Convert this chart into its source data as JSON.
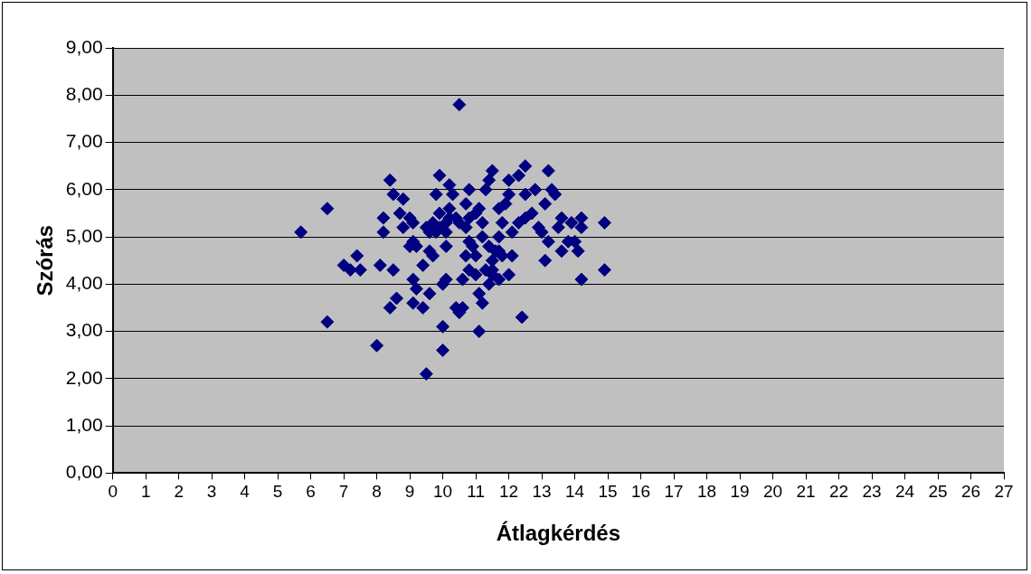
{
  "chart_data": {
    "type": "scatter",
    "xlabel": "Átlagkérdés",
    "ylabel": "Szórás",
    "color": "#000080",
    "marker": "diamond",
    "grid": "y",
    "xlim": [
      0,
      27
    ],
    "xticks": [
      0,
      1,
      2,
      3,
      4,
      5,
      6,
      7,
      8,
      9,
      10,
      11,
      12,
      13,
      14,
      15,
      16,
      17,
      18,
      19,
      20,
      21,
      22,
      23,
      24,
      25,
      26,
      27
    ],
    "ylim": [
      0,
      9
    ],
    "yticks": [
      {
        "value": 0,
        "label": "0,00"
      },
      {
        "value": 1,
        "label": "1,00"
      },
      {
        "value": 2,
        "label": "2,00"
      },
      {
        "value": 3,
        "label": "3,00"
      },
      {
        "value": 4,
        "label": "4,00"
      },
      {
        "value": 5,
        "label": "5,00"
      },
      {
        "value": 6,
        "label": "6,00"
      },
      {
        "value": 7,
        "label": "7,00"
      },
      {
        "value": 8,
        "label": "8,00"
      },
      {
        "value": 9,
        "label": "9,00"
      }
    ],
    "x": [
      5.7,
      6.5,
      6.5,
      7.0,
      7.2,
      7.4,
      7.5,
      8.0,
      8.1,
      8.5,
      8.4,
      8.6,
      8.4,
      8.2,
      8.2,
      8.5,
      8.7,
      9.0,
      8.8,
      9.1,
      8.8,
      9.1,
      9.0,
      9.2,
      9.1,
      9.2,
      9.1,
      9.4,
      9.4,
      9.6,
      9.5,
      9.6,
      9.5,
      9.7,
      9.7,
      9.8,
      9.9,
      9.9,
      10.0,
      10.0,
      10.0,
      10.1,
      10.1,
      10.1,
      10.2,
      10.2,
      10.3,
      10.4,
      10.5,
      10.4,
      10.5,
      10.6,
      10.6,
      10.7,
      10.8,
      10.7,
      10.7,
      10.8,
      10.8,
      10.9,
      11.0,
      11.0,
      11.1,
      11.2,
      11.1,
      11.2,
      11.3,
      11.4,
      11.5,
      11.4,
      11.5,
      11.5,
      11.6,
      11.7,
      11.7,
      11.8,
      11.7,
      11.9,
      12.0,
      12.0,
      12.1,
      12.0,
      12.1,
      12.3,
      12.3,
      12.4,
      12.5,
      12.5,
      12.5,
      12.7,
      12.8,
      12.9,
      13.0,
      13.1,
      13.1,
      13.2,
      13.2,
      13.3,
      13.4,
      13.5,
      13.6,
      13.6,
      13.8,
      13.9,
      14.0,
      14.1,
      14.2,
      14.2,
      14.2,
      14.9,
      14.9,
      9.6,
      9.9,
      10.1,
      10.2,
      9.8,
      11.3,
      11.4,
      11.5,
      11.7,
      11.8,
      11.2,
      10.5,
      10.8,
      11.0,
      11.1
    ],
    "values": [
      5.1,
      5.6,
      3.2,
      4.4,
      4.3,
      4.6,
      4.3,
      2.7,
      4.4,
      4.3,
      3.5,
      3.7,
      6.2,
      5.4,
      5.1,
      5.9,
      5.5,
      5.4,
      5.8,
      5.3,
      5.2,
      4.9,
      4.8,
      4.8,
      4.1,
      3.9,
      3.6,
      3.5,
      4.4,
      4.7,
      2.1,
      3.8,
      5.2,
      5.3,
      4.6,
      5.9,
      6.3,
      5.5,
      3.1,
      2.6,
      4.0,
      4.1,
      4.8,
      5.1,
      5.6,
      6.1,
      5.9,
      5.4,
      7.8,
      3.5,
      3.4,
      3.5,
      4.1,
      4.6,
      4.3,
      5.2,
      5.7,
      6.0,
      4.9,
      4.8,
      4.6,
      4.2,
      3.8,
      3.6,
      3.0,
      5.3,
      6.0,
      6.2,
      6.4,
      4.8,
      4.5,
      4.2,
      4.7,
      4.1,
      5.0,
      5.3,
      5.6,
      5.7,
      6.2,
      5.9,
      4.6,
      4.2,
      5.1,
      5.3,
      6.3,
      3.3,
      6.5,
      5.9,
      5.4,
      5.5,
      6.0,
      5.2,
      5.1,
      5.7,
      4.5,
      6.4,
      4.9,
      6.0,
      5.9,
      5.2,
      4.7,
      5.4,
      4.9,
      5.3,
      4.9,
      4.7,
      5.4,
      5.2,
      4.1,
      4.3,
      5.3,
      5.1,
      5.2,
      5.3,
      5.4,
      5.1,
      4.3,
      4.0,
      4.3,
      4.7,
      4.6,
      5.0,
      5.3,
      5.4,
      5.5,
      5.6
    ]
  }
}
